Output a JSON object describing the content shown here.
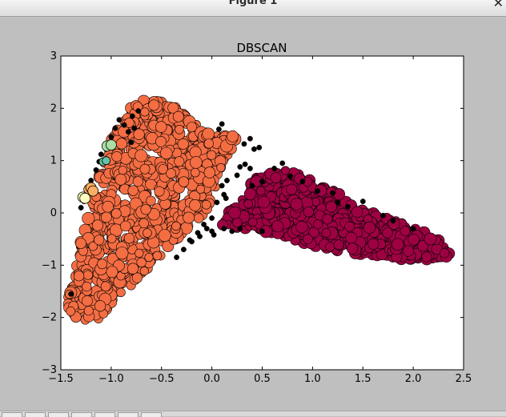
{
  "window": {
    "title": "Figure 1",
    "close_glyph": "✕"
  },
  "toolbar": {
    "buttons": [
      "home-icon",
      "back-icon",
      "forward-icon",
      "pan-icon",
      "zoom-icon",
      "subplots-icon",
      "save-icon"
    ]
  },
  "chart_data": {
    "type": "scatter",
    "title": "DBSCAN",
    "xlabel": "",
    "ylabel": "",
    "xlim": [
      -1.5,
      2.5
    ],
    "ylim": [
      -3,
      3
    ],
    "xticks": [
      -1.5,
      -1.0,
      -0.5,
      0.0,
      0.5,
      1.0,
      1.5,
      2.0,
      2.5
    ],
    "xtick_labels": [
      "−1.5",
      "−1.0",
      "−0.5",
      "0.0",
      "0.5",
      "1.0",
      "1.5",
      "2.0",
      "2.5"
    ],
    "yticks": [
      -3,
      -2,
      -1,
      0,
      1,
      2,
      3
    ],
    "ytick_labels": [
      "−3",
      "−2",
      "−1",
      "0",
      "1",
      "2",
      "3"
    ],
    "grid": false,
    "legend": "none",
    "colors": {
      "plot_background": "#ffffff",
      "figure_background": "#bfbfbf",
      "cluster_large_left": "#f46d43",
      "cluster_right": "#9e0142",
      "noise": "#000000",
      "small_cluster_green": "#abdda4",
      "small_cluster_blue": "#66c2a5",
      "small_cluster_orange": "#fdae61",
      "small_cluster_yellow": "#ffffbf"
    },
    "series": [
      {
        "role": "cluster-left",
        "color": "#f46d43",
        "marker_size": "large",
        "outline": [
          [
            -1.45,
            -1.75
          ],
          [
            -1.35,
            -1.1
          ],
          [
            -1.3,
            -0.5
          ],
          [
            -1.2,
            0.1
          ],
          [
            -1.1,
            0.8
          ],
          [
            -0.98,
            1.5
          ],
          [
            -0.85,
            1.95
          ],
          [
            -0.7,
            2.15
          ],
          [
            -0.5,
            2.15
          ],
          [
            -0.3,
            2.0
          ],
          [
            -0.15,
            1.7
          ],
          [
            0.0,
            1.5
          ],
          [
            0.2,
            1.55
          ],
          [
            0.28,
            1.35
          ],
          [
            0.1,
            0.95
          ],
          [
            0.05,
            0.5
          ],
          [
            -0.05,
            0.0
          ],
          [
            -0.25,
            -0.3
          ],
          [
            -0.45,
            -0.7
          ],
          [
            -0.7,
            -1.2
          ],
          [
            -0.95,
            -1.7
          ],
          [
            -1.2,
            -2.2
          ],
          [
            -1.38,
            -2.1
          ]
        ]
      },
      {
        "role": "cluster-right",
        "color": "#9e0142",
        "marker_size": "large",
        "outline": [
          [
            0.12,
            -0.05
          ],
          [
            0.25,
            0.25
          ],
          [
            0.45,
            0.68
          ],
          [
            0.6,
            0.78
          ],
          [
            0.8,
            0.85
          ],
          [
            1.05,
            0.55
          ],
          [
            1.25,
            0.4
          ],
          [
            1.35,
            0.25
          ],
          [
            1.6,
            0.0
          ],
          [
            1.9,
            -0.2
          ],
          [
            2.15,
            -0.4
          ],
          [
            2.3,
            -0.6
          ],
          [
            2.38,
            -0.82
          ],
          [
            2.2,
            -0.92
          ],
          [
            1.9,
            -0.88
          ],
          [
            1.5,
            -0.8
          ],
          [
            1.2,
            -0.72
          ],
          [
            0.95,
            -0.6
          ],
          [
            0.7,
            -0.45
          ],
          [
            0.5,
            -0.38
          ],
          [
            0.3,
            -0.3
          ],
          [
            0.1,
            -0.25
          ]
        ]
      },
      {
        "role": "noise",
        "color": "#000000",
        "marker_size": "small",
        "points": [
          [
            -1.4,
            -1.55
          ],
          [
            -1.3,
            0.1
          ],
          [
            -1.27,
            0.22
          ],
          [
            -1.22,
            0.46
          ],
          [
            -1.2,
            0.62
          ],
          [
            -1.15,
            0.82
          ],
          [
            -1.12,
            0.98
          ],
          [
            -1.1,
            1.12
          ],
          [
            -1.05,
            1.22
          ],
          [
            -1.0,
            1.45
          ],
          [
            -0.96,
            1.62
          ],
          [
            -0.92,
            1.78
          ],
          [
            -0.87,
            1.68
          ],
          [
            -0.83,
            1.55
          ],
          [
            -0.79,
            1.85
          ],
          [
            -0.73,
            1.95
          ],
          [
            -0.77,
            1.62
          ],
          [
            -0.8,
            1.35
          ],
          [
            0.07,
            1.6
          ],
          [
            0.1,
            1.7
          ],
          [
            0.32,
            1.32
          ],
          [
            0.38,
            1.42
          ],
          [
            0.42,
            1.22
          ],
          [
            0.47,
            1.25
          ],
          [
            0.28,
            0.88
          ],
          [
            0.33,
            0.93
          ],
          [
            0.38,
            0.85
          ],
          [
            0.25,
            0.72
          ],
          [
            0.15,
            0.62
          ],
          [
            0.1,
            0.52
          ],
          [
            0.12,
            0.35
          ],
          [
            0.14,
            0.28
          ],
          [
            0.4,
            0.52
          ],
          [
            0.5,
            0.6
          ],
          [
            0.62,
            0.85
          ],
          [
            0.7,
            0.95
          ],
          [
            0.78,
            0.7
          ],
          [
            0.9,
            0.6
          ],
          [
            1.05,
            0.42
          ],
          [
            1.2,
            0.38
          ],
          [
            1.25,
            0.2
          ],
          [
            1.35,
            0.12
          ],
          [
            1.5,
            0.22
          ],
          [
            1.7,
            -0.05
          ],
          [
            1.8,
            -0.15
          ],
          [
            2.0,
            -0.3
          ],
          [
            0.05,
            0.2
          ],
          [
            0.0,
            -0.1
          ],
          [
            -0.05,
            -0.3
          ],
          [
            -0.12,
            -0.45
          ],
          [
            -0.2,
            -0.55
          ],
          [
            -0.28,
            -0.7
          ],
          [
            -0.0,
            -0.35
          ],
          [
            0.12,
            -0.3
          ],
          [
            0.2,
            -0.35
          ],
          [
            0.28,
            -0.3
          ],
          [
            -0.35,
            -0.85
          ],
          [
            -0.08,
            -0.22
          ],
          [
            -0.14,
            -0.38
          ],
          [
            -0.22,
            -0.52
          ],
          [
            0.02,
            -0.42
          ],
          [
            0.5,
            -0.35
          ]
        ]
      },
      {
        "role": "small-cluster",
        "color": "#abdda4",
        "marker_size": "large",
        "points": [
          [
            -1.04,
            1.28
          ],
          [
            -1.0,
            1.3
          ]
        ]
      },
      {
        "role": "small-cluster",
        "color": "#66c2a5",
        "marker_size": "medium",
        "points": [
          [
            -1.08,
            0.98
          ],
          [
            -1.05,
            1.0
          ]
        ]
      },
      {
        "role": "small-cluster",
        "color": "#fdae61",
        "marker_size": "large",
        "points": [
          [
            -1.22,
            0.45
          ],
          [
            -1.2,
            0.48
          ],
          [
            -1.18,
            0.42
          ]
        ]
      },
      {
        "role": "small-cluster",
        "color": "#ffffbf",
        "marker_size": "large",
        "points": [
          [
            -1.28,
            0.3
          ],
          [
            -1.26,
            0.28
          ]
        ]
      }
    ]
  }
}
